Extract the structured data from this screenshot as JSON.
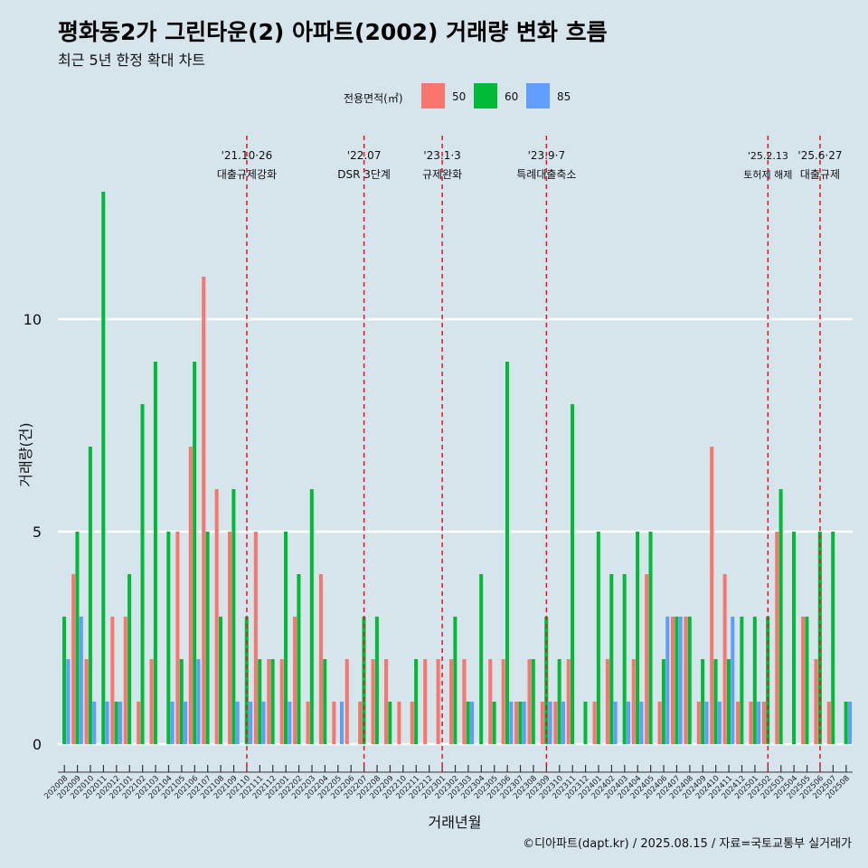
{
  "title": "평화동2가 그린타운(2) 아파트(2002) 거래량 변화 흐름",
  "subtitle": "최근 5년 한정 확대 차트",
  "caption": "©디아파트(dapt.kr) / 2025.08.15 / 자료=국토교통부 실거래가",
  "legend": {
    "title": "전용면적(㎡)",
    "items": [
      {
        "label": "50",
        "color": "#f8766d"
      },
      {
        "label": "60",
        "color": "#00ba38"
      },
      {
        "label": "85",
        "color": "#619cff"
      }
    ]
  },
  "chart_data": {
    "type": "bar",
    "title": "평화동2가 그린타운(2) 아파트(2002) 거래량 변화 흐름",
    "subtitle": "최근 5년 한정 확대 차트",
    "xlabel": "거래년월",
    "ylabel": "거래량(건)",
    "ylim": [
      0,
      13.5
    ],
    "yticks": [
      0,
      5,
      10
    ],
    "grid": true,
    "legend_position": "top",
    "categories": [
      "202008",
      "202009",
      "202010",
      "202011",
      "202012",
      "202101",
      "202102",
      "202103",
      "202104",
      "202105",
      "202106",
      "202107",
      "202108",
      "202109",
      "202110",
      "202111",
      "202112",
      "202201",
      "202202",
      "202203",
      "202204",
      "202205",
      "202206",
      "202207",
      "202208",
      "202209",
      "202210",
      "202211",
      "202212",
      "202301",
      "202302",
      "202303",
      "202304",
      "202305",
      "202306",
      "202307",
      "202308",
      "202309",
      "202310",
      "202311",
      "202312",
      "202401",
      "202402",
      "202403",
      "202404",
      "202405",
      "202406",
      "202407",
      "202408",
      "202409",
      "202410",
      "202411",
      "202412",
      "202501",
      "202502",
      "202503",
      "202504",
      "202505",
      "202506",
      "202507",
      "202508"
    ],
    "series": [
      {
        "name": "50",
        "color": "#f8766d",
        "values": [
          0,
          4,
          2,
          0,
          3,
          3,
          1,
          2,
          0,
          5,
          7,
          11,
          6,
          5,
          0,
          5,
          2,
          2,
          3,
          1,
          4,
          1,
          2,
          1,
          2,
          2,
          1,
          1,
          2,
          2,
          2,
          2,
          0,
          2,
          2,
          1,
          2,
          1,
          1,
          2,
          0,
          1,
          2,
          0,
          2,
          4,
          1,
          3,
          3,
          1,
          7,
          4,
          1,
          1,
          1,
          5,
          0,
          3,
          2,
          1,
          0
        ]
      },
      {
        "name": "60",
        "color": "#00ba38",
        "values": [
          3,
          5,
          7,
          13,
          1,
          4,
          8,
          9,
          5,
          2,
          9,
          5,
          3,
          6,
          3,
          2,
          2,
          5,
          4,
          6,
          2,
          0,
          0,
          3,
          3,
          1,
          0,
          2,
          0,
          0,
          3,
          1,
          4,
          1,
          9,
          1,
          2,
          3,
          2,
          8,
          1,
          5,
          4,
          4,
          5,
          5,
          2,
          3,
          3,
          2,
          2,
          2,
          3,
          3,
          3,
          6,
          5,
          3,
          5,
          5,
          1
        ]
      },
      {
        "name": "85",
        "color": "#619cff",
        "values": [
          2,
          3,
          1,
          1,
          1,
          0,
          0,
          0,
          1,
          1,
          2,
          0,
          0,
          1,
          1,
          1,
          0,
          1,
          0,
          0,
          0,
          1,
          0,
          0,
          0,
          0,
          0,
          0,
          0,
          0,
          0,
          1,
          0,
          0,
          1,
          1,
          0,
          1,
          1,
          0,
          0,
          0,
          1,
          1,
          1,
          0,
          3,
          3,
          0,
          1,
          1,
          3,
          0,
          1,
          0,
          0,
          0,
          0,
          0,
          0,
          1
        ]
      }
    ],
    "annotations": [
      {
        "date": "'21.10·26",
        "label": "대출규제강화",
        "x": "202110"
      },
      {
        "date": "'22.07",
        "label": "DSR 3단계",
        "x": "202207"
      },
      {
        "date": "'23.1·3",
        "label": "규제완화",
        "x": "202301"
      },
      {
        "date": "'23.9·7",
        "label": "특례대출축소",
        "x": "202309"
      },
      {
        "date": "'25.2.13",
        "label": "토허제 해제",
        "x": "202502"
      },
      {
        "date": "'25.6·27",
        "label": "대출규제",
        "x": "202506"
      }
    ]
  }
}
